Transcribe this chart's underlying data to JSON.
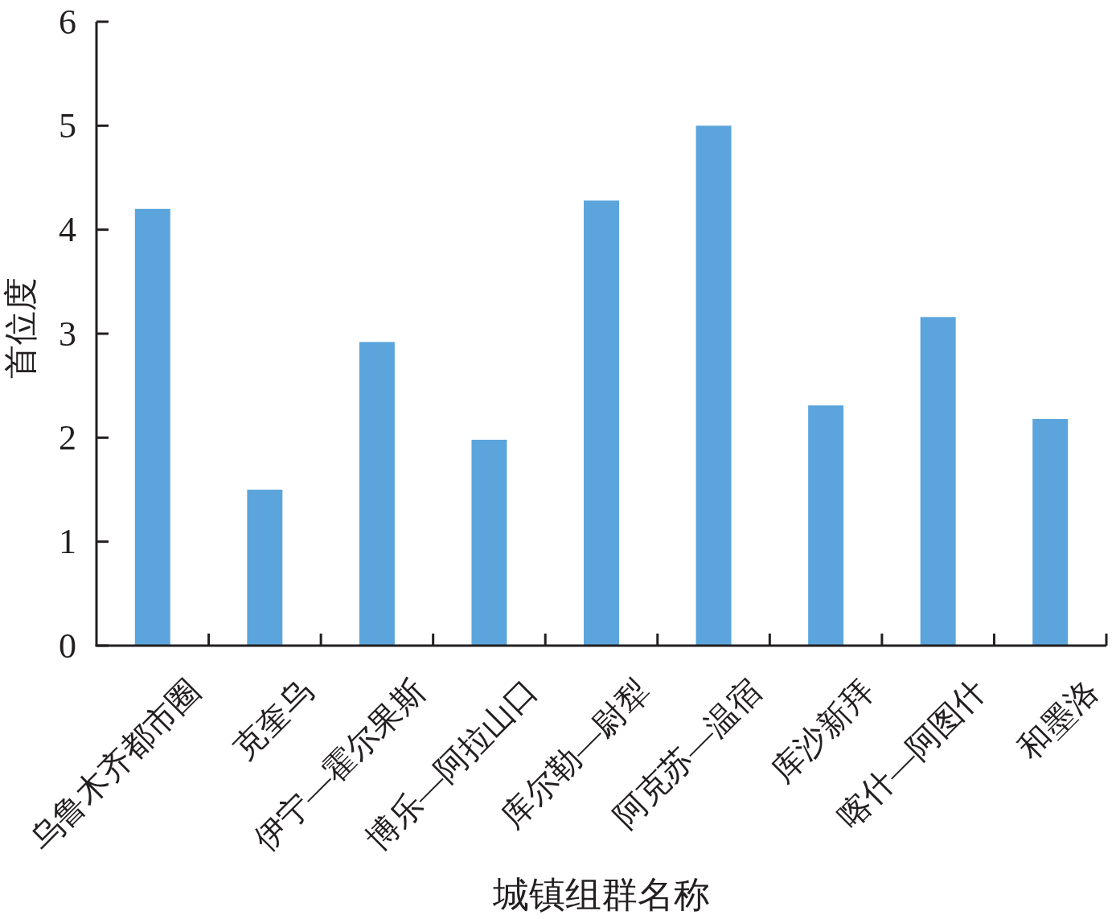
{
  "chart_data": {
    "type": "bar",
    "xlabel": "城镇组群名称",
    "ylabel": "首位度",
    "categories": [
      "乌鲁木齐都市圈",
      "克奎乌",
      "伊宁—霍尔果斯",
      "博乐—阿拉山口",
      "库尔勒—尉犁",
      "阿克苏—温宿",
      "库沙新拜",
      "喀什—阿图什",
      "和墨洛"
    ],
    "values": [
      4.2,
      1.5,
      2.92,
      1.98,
      4.28,
      5.0,
      2.31,
      3.16,
      2.18
    ],
    "color": "#5ba5dc",
    "ylim": [
      0,
      6
    ],
    "yticks": [
      0,
      1,
      2,
      3,
      4,
      5,
      6
    ]
  }
}
